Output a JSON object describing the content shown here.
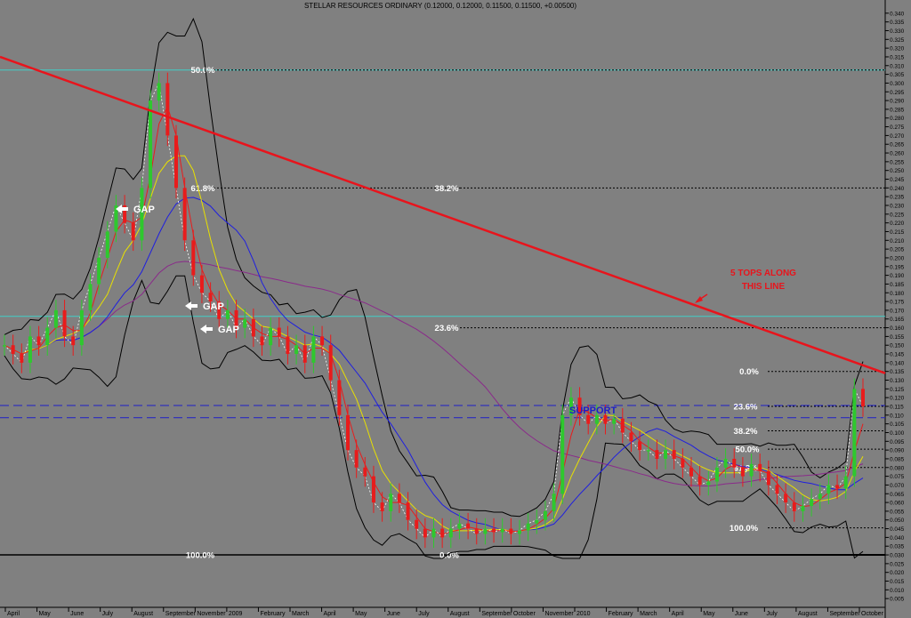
{
  "chart_data": {
    "type": "candlestick",
    "title": "STELLAR RESOURCES ORDINARY (0.12000, 0.12000, 0.11500, 0.11500, +0.00500)",
    "ylim": [
      0.0,
      0.345
    ],
    "y_ticks": [
      "0.340",
      "0.335",
      "0.330",
      "0.325",
      "0.320",
      "0.315",
      "0.310",
      "0.305",
      "0.300",
      "0.295",
      "0.290",
      "0.285",
      "0.280",
      "0.275",
      "0.270",
      "0.265",
      "0.260",
      "0.255",
      "0.250",
      "0.245",
      "0.240",
      "0.235",
      "0.230",
      "0.225",
      "0.220",
      "0.215",
      "0.210",
      "0.205",
      "0.200",
      "0.195",
      "0.190",
      "0.185",
      "0.180",
      "0.175",
      "0.170",
      "0.165",
      "0.160",
      "0.155",
      "0.150",
      "0.145",
      "0.140",
      "0.135",
      "0.130",
      "0.125",
      "0.120",
      "0.115",
      "0.110",
      "0.105",
      "0.100",
      "0.095",
      "0.090",
      "0.085",
      "0.080",
      "0.075",
      "0.070",
      "0.065",
      "0.060",
      "0.055",
      "0.050",
      "0.045",
      "0.040",
      "0.035",
      "0.030",
      "0.025",
      "0.020",
      "0.015",
      "0.010",
      "0.005"
    ],
    "x_ticks": [
      "April",
      "May",
      "June",
      "July",
      "August",
      "September",
      "November",
      "2009",
      "February",
      "March",
      "April",
      "May",
      "June",
      "July",
      "August",
      "September",
      "October",
      "November",
      "2010",
      "February",
      "March",
      "April",
      "May",
      "June",
      "July",
      "August",
      "September",
      "October"
    ],
    "price_series": [
      0.15,
      0.145,
      0.14,
      0.155,
      0.15,
      0.16,
      0.17,
      0.155,
      0.15,
      0.17,
      0.185,
      0.2,
      0.215,
      0.23,
      0.22,
      0.21,
      0.24,
      0.29,
      0.3,
      0.27,
      0.24,
      0.21,
      0.19,
      0.18,
      0.175,
      0.165,
      0.17,
      0.16,
      0.165,
      0.155,
      0.15,
      0.16,
      0.155,
      0.145,
      0.15,
      0.14,
      0.155,
      0.15,
      0.13,
      0.11,
      0.09,
      0.08,
      0.075,
      0.06,
      0.055,
      0.065,
      0.06,
      0.05,
      0.045,
      0.04,
      0.045,
      0.04,
      0.045,
      0.048,
      0.045,
      0.042,
      0.045,
      0.043,
      0.045,
      0.042,
      0.044,
      0.048,
      0.05,
      0.055,
      0.065,
      0.11,
      0.12,
      0.11,
      0.105,
      0.11,
      0.105,
      0.108,
      0.1,
      0.095,
      0.09,
      0.09,
      0.085,
      0.09,
      0.085,
      0.08,
      0.075,
      0.07,
      0.072,
      0.08,
      0.085,
      0.08,
      0.075,
      0.082,
      0.078,
      0.07,
      0.065,
      0.06,
      0.055,
      0.058,
      0.062,
      0.065,
      0.07,
      0.068,
      0.075,
      0.125,
      0.115
    ],
    "fibonacci_levels": [
      {
        "label": "50.0%",
        "value": 0.3075
      },
      {
        "label": "61.8%",
        "value": 0.24
      },
      {
        "label": "38.2%",
        "value": 0.24
      },
      {
        "label": "23.6%",
        "value": 0.16
      },
      {
        "label": "100.0%",
        "value": 0.03
      },
      {
        "label": "0.0%",
        "value": 0.03
      },
      {
        "label": "0.0%",
        "value": 0.135
      },
      {
        "label": "23.6%",
        "value": 0.115
      },
      {
        "label": "38.2%",
        "value": 0.101
      },
      {
        "label": "50.0%",
        "value": 0.0905
      },
      {
        "label": "61.8%",
        "value": 0.08
      },
      {
        "label": "100.0%",
        "value": 0.0455
      }
    ],
    "support_levels": [
      0.1155,
      0.1085
    ],
    "horizontal_lines": [
      0.1665,
      0.3075,
      0.03
    ],
    "trendline": {
      "from_price": 0.315,
      "to_price": 0.134
    }
  },
  "annotations": {
    "gap1": "GAP",
    "gap2": "GAP",
    "gap3": "GAP",
    "support": "SUPPORT",
    "tops_line1": "5 TOPS ALONG",
    "tops_line2": "THIS LINE"
  },
  "colors": {
    "background": "#808080",
    "trendline": "#e8141c",
    "support": "#1e1ec8",
    "up_candle": "#2ec82e",
    "down_candle": "#e81c1c",
    "ma_yellow": "#e8e000",
    "ma_blue": "#1e1ee0",
    "ma_red": "#e81c1c",
    "ma_purple": "#8a2a8a",
    "bollinger": "#000000",
    "cyan_line": "#40d0c8"
  }
}
